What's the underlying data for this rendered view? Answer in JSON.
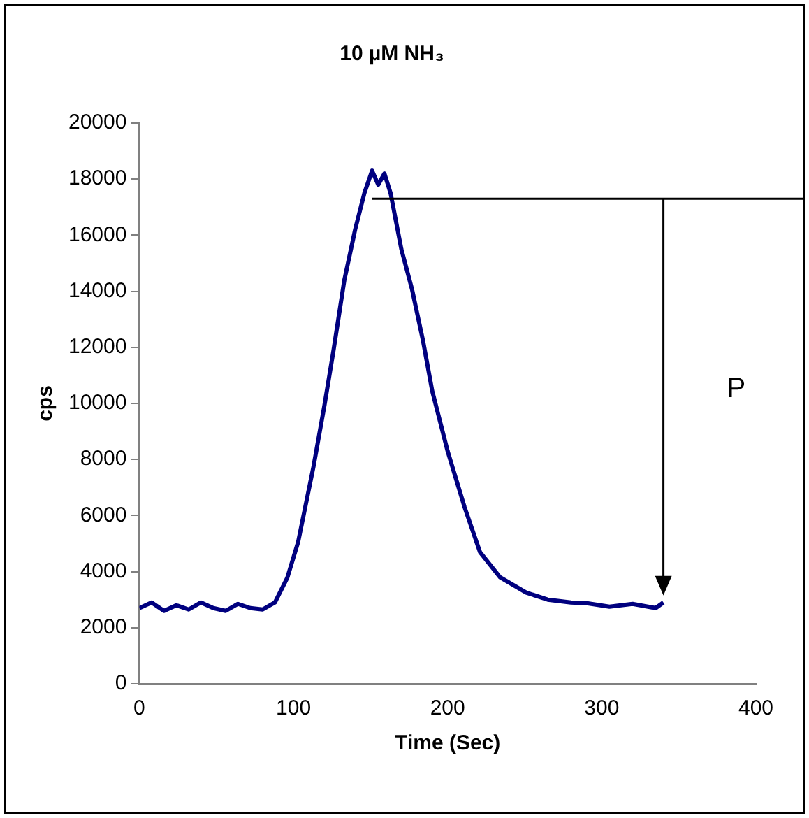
{
  "chart_data": {
    "type": "line",
    "title": "10 µM NH₃",
    "xlabel": "Time (Sec)",
    "ylabel": "cps",
    "xlim": [
      0,
      400
    ],
    "xticks": [
      0,
      100,
      200,
      300,
      400
    ],
    "ylim": [
      0,
      20000
    ],
    "yticks": [
      0,
      2000,
      4000,
      6000,
      8000,
      10000,
      12000,
      14000,
      16000,
      18000,
      20000
    ],
    "grid": false,
    "legend": false,
    "marker": "none",
    "line_style": "solid",
    "series": [
      {
        "color": "#00007f",
        "x": [
          0,
          8,
          16,
          24,
          32,
          40,
          48,
          56,
          64,
          72,
          80,
          88,
          96,
          103,
          113,
          120,
          126,
          133,
          140,
          146,
          151,
          155,
          159,
          163,
          170,
          177,
          184,
          190,
          200,
          211,
          221,
          234,
          251,
          265,
          280,
          291,
          305,
          320,
          335,
          340
        ],
        "values": [
          2700,
          2900,
          2600,
          2800,
          2650,
          2900,
          2700,
          2600,
          2850,
          2700,
          2650,
          2900,
          3780,
          5050,
          7750,
          9900,
          11900,
          14400,
          16200,
          17500,
          18300,
          17800,
          18200,
          17500,
          15500,
          14050,
          12250,
          10450,
          8300,
          6300,
          4700,
          3800,
          3250,
          3000,
          2900,
          2870,
          2750,
          2850,
          2700,
          2900
        ]
      }
    ],
    "ref_lines": [
      {
        "axis": "y",
        "value": 17300,
        "color": "#000000"
      }
    ],
    "annotations": [
      "P"
    ]
  }
}
